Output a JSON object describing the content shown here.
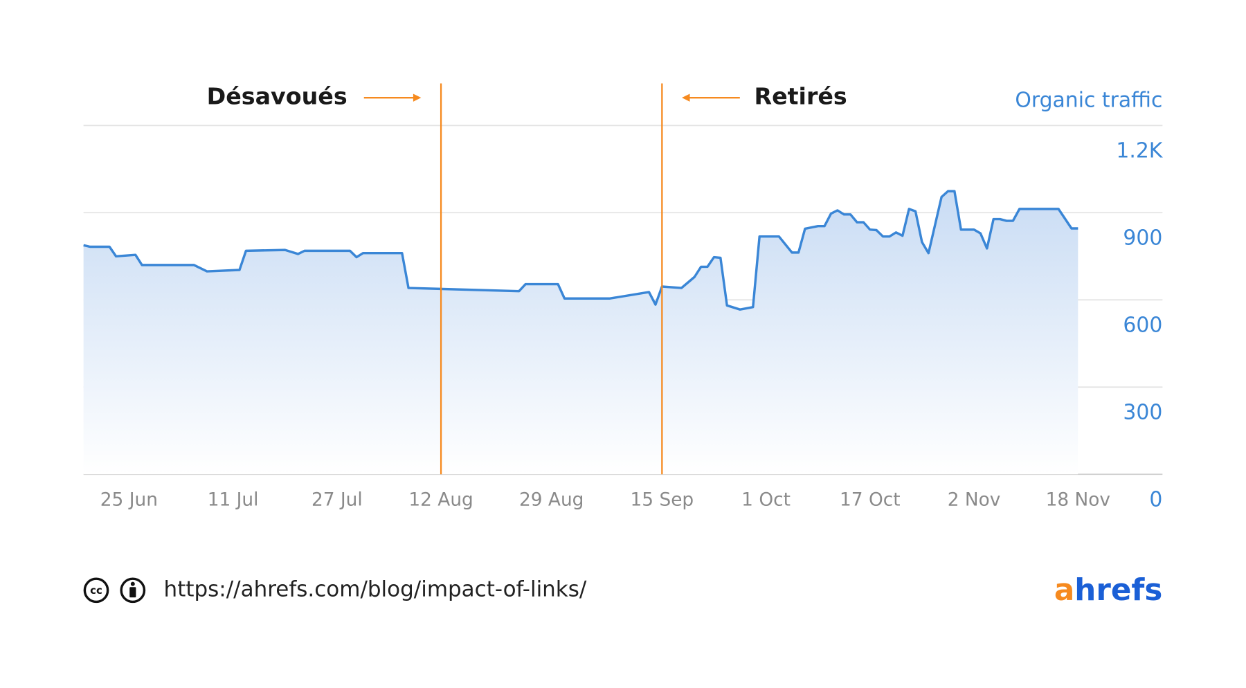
{
  "chart_data": {
    "type": "area",
    "x": [
      169,
      170,
      173,
      174,
      177,
      178,
      186,
      188,
      193,
      194,
      200,
      202,
      203,
      210,
      211,
      212,
      218,
      219,
      236,
      237,
      242,
      243,
      250,
      256,
      257,
      258,
      261,
      263,
      264,
      265,
      266,
      267,
      268,
      270,
      272,
      273,
      276,
      278,
      279,
      280,
      282,
      283,
      284,
      285,
      286,
      287,
      288,
      289,
      290,
      291,
      292,
      293,
      294,
      295,
      296,
      297,
      298,
      299,
      301,
      302,
      303,
      304,
      306,
      307,
      308,
      309,
      310,
      311,
      312,
      313,
      319,
      321,
      322
    ],
    "series": [
      {
        "name": "Organic traffic",
        "color": "#3a86d6",
        "values": [
          788,
          783,
          783,
          750,
          755,
          720,
          720,
          698,
          703,
          769,
          772,
          758,
          769,
          769,
          747,
          761,
          761,
          641,
          630,
          654,
          654,
          605,
          605,
          627,
          584,
          646,
          641,
          679,
          714,
          714,
          747,
          745,
          581,
          567,
          575,
          818,
          818,
          763,
          763,
          845,
          854,
          854,
          897,
          908,
          894,
          894,
          867,
          867,
          842,
          840,
          818,
          818,
          832,
          821,
          913,
          905,
          799,
          761,
          954,
          974,
          974,
          842,
          842,
          829,
          777,
          878,
          878,
          872,
          872,
          913,
          913,
          846,
          846
        ]
      }
    ],
    "xlim": [
      169,
      335
    ],
    "xticks": [
      {
        "value": 176,
        "label": "25 Jun"
      },
      {
        "value": 192,
        "label": "11 Jul"
      },
      {
        "value": 208,
        "label": "27 Jul"
      },
      {
        "value": 224,
        "label": "12 Aug"
      },
      {
        "value": 241,
        "label": "29 Aug"
      },
      {
        "value": 258,
        "label": "15 Sep"
      },
      {
        "value": 274,
        "label": "1 Oct"
      },
      {
        "value": 290,
        "label": "17 Oct"
      },
      {
        "value": 306,
        "label": "2 Nov"
      },
      {
        "value": 322,
        "label": "18 Nov"
      }
    ],
    "ylim": [
      0,
      1200
    ],
    "yticks": [
      0,
      300,
      600,
      900,
      {
        "value": 1200,
        "label": "1.2K"
      }
    ],
    "grid": true,
    "annotations": [
      {
        "text": "Désavoués",
        "x": 224,
        "color": "#f68a1f"
      },
      {
        "text": "Retirés",
        "x": 258,
        "color": "#f68a1f"
      }
    ]
  },
  "footer": {
    "url": "https://ahrefs.com/blog/impact-of-links/",
    "brand": "ahrefs"
  }
}
